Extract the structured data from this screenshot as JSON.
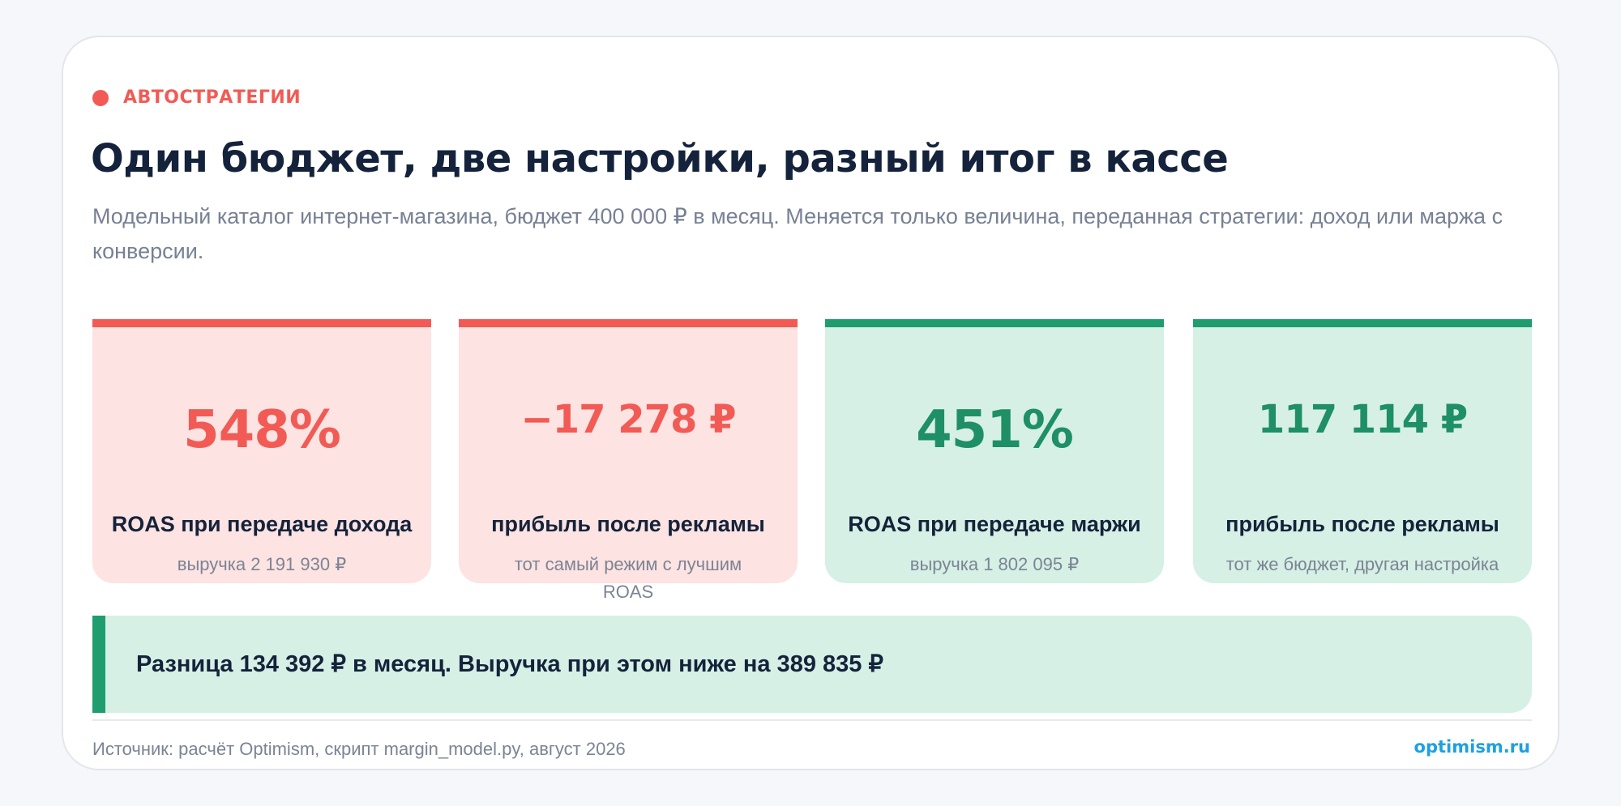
{
  "header": {
    "eyebrow": "АВТОСТРАТЕГИИ",
    "title": "Один бюджет, две настройки, разный итог в кассе",
    "subtitle": "Модельный каталог интернет-магазина, бюджет 400 000 ₽ в месяц. Меняется только величина, переданная стратегии: доход или маржа с конверсии."
  },
  "stats": [
    {
      "value": "548%",
      "label": "ROAS при передаче дохода",
      "note": "выручка 2 191 930 ₽",
      "tone": "negative"
    },
    {
      "value": "−17 278 ₽",
      "label": "прибыль после рекламы",
      "note": "тот самый режим с лучшим ROAS",
      "tone": "negative"
    },
    {
      "value": "451%",
      "label": "ROAS при передаче маржи",
      "note": "выручка 1 802 095 ₽",
      "tone": "positive"
    },
    {
      "value": "117 114 ₽",
      "label": "прибыль после рекламы",
      "note": "тот же бюджет, другая настройка",
      "tone": "positive"
    }
  ],
  "callout": {
    "text": "Разница 134 392 ₽ в месяц. Выручка при этом ниже на 389 835 ₽"
  },
  "footer": {
    "source": "Источник: расчёт Optimism, скрипт margin_model.py, август 2026",
    "brand": "optimism.ru"
  },
  "colors": {
    "accent_negative": "#f25b55",
    "accent_positive": "#1f9d6e",
    "brand": "#1ea0e0",
    "title": "#14233b"
  }
}
